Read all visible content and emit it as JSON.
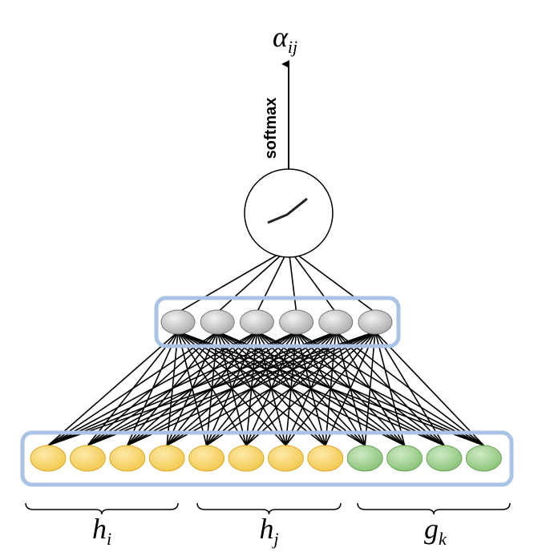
{
  "output": {
    "symbol": "α",
    "subscript": "ij"
  },
  "arrow_label": "softmax",
  "groups": [
    {
      "symbol": "h",
      "subscript": "i"
    },
    {
      "symbol": "h",
      "subscript": "j"
    },
    {
      "symbol": "g",
      "subscript": "k"
    }
  ]
}
